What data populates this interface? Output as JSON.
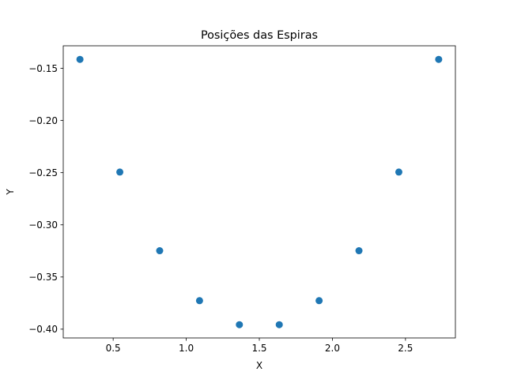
{
  "chart_data": {
    "type": "scatter",
    "title": "Posições das Espiras",
    "xlabel": "X",
    "ylabel": "Y",
    "xlim": [
      0.1584,
      2.8416
    ],
    "ylim": [
      -0.40842,
      -0.12839
    ],
    "xticks": [
      0.5,
      1.0,
      1.5,
      2.0,
      2.5
    ],
    "xtick_labels": [
      "0.5",
      "1.0",
      "1.5",
      "2.0",
      "2.5"
    ],
    "yticks": [
      -0.4,
      -0.35,
      -0.3,
      -0.25,
      -0.2,
      -0.15
    ],
    "ytick_labels": [
      "−0.40",
      "−0.35",
      "−0.30",
      "−0.25",
      "−0.20",
      "−0.15"
    ],
    "grid": false,
    "color": "#1f77b4",
    "x": [
      0.2727,
      0.5455,
      0.8182,
      1.0909,
      1.3636,
      1.6364,
      1.9091,
      2.1818,
      2.4545,
      2.7273
    ],
    "y": [
      -0.1414,
      -0.2494,
      -0.3248,
      -0.3727,
      -0.3957,
      -0.3957,
      -0.3727,
      -0.3248,
      -0.2494,
      -0.1414
    ]
  }
}
